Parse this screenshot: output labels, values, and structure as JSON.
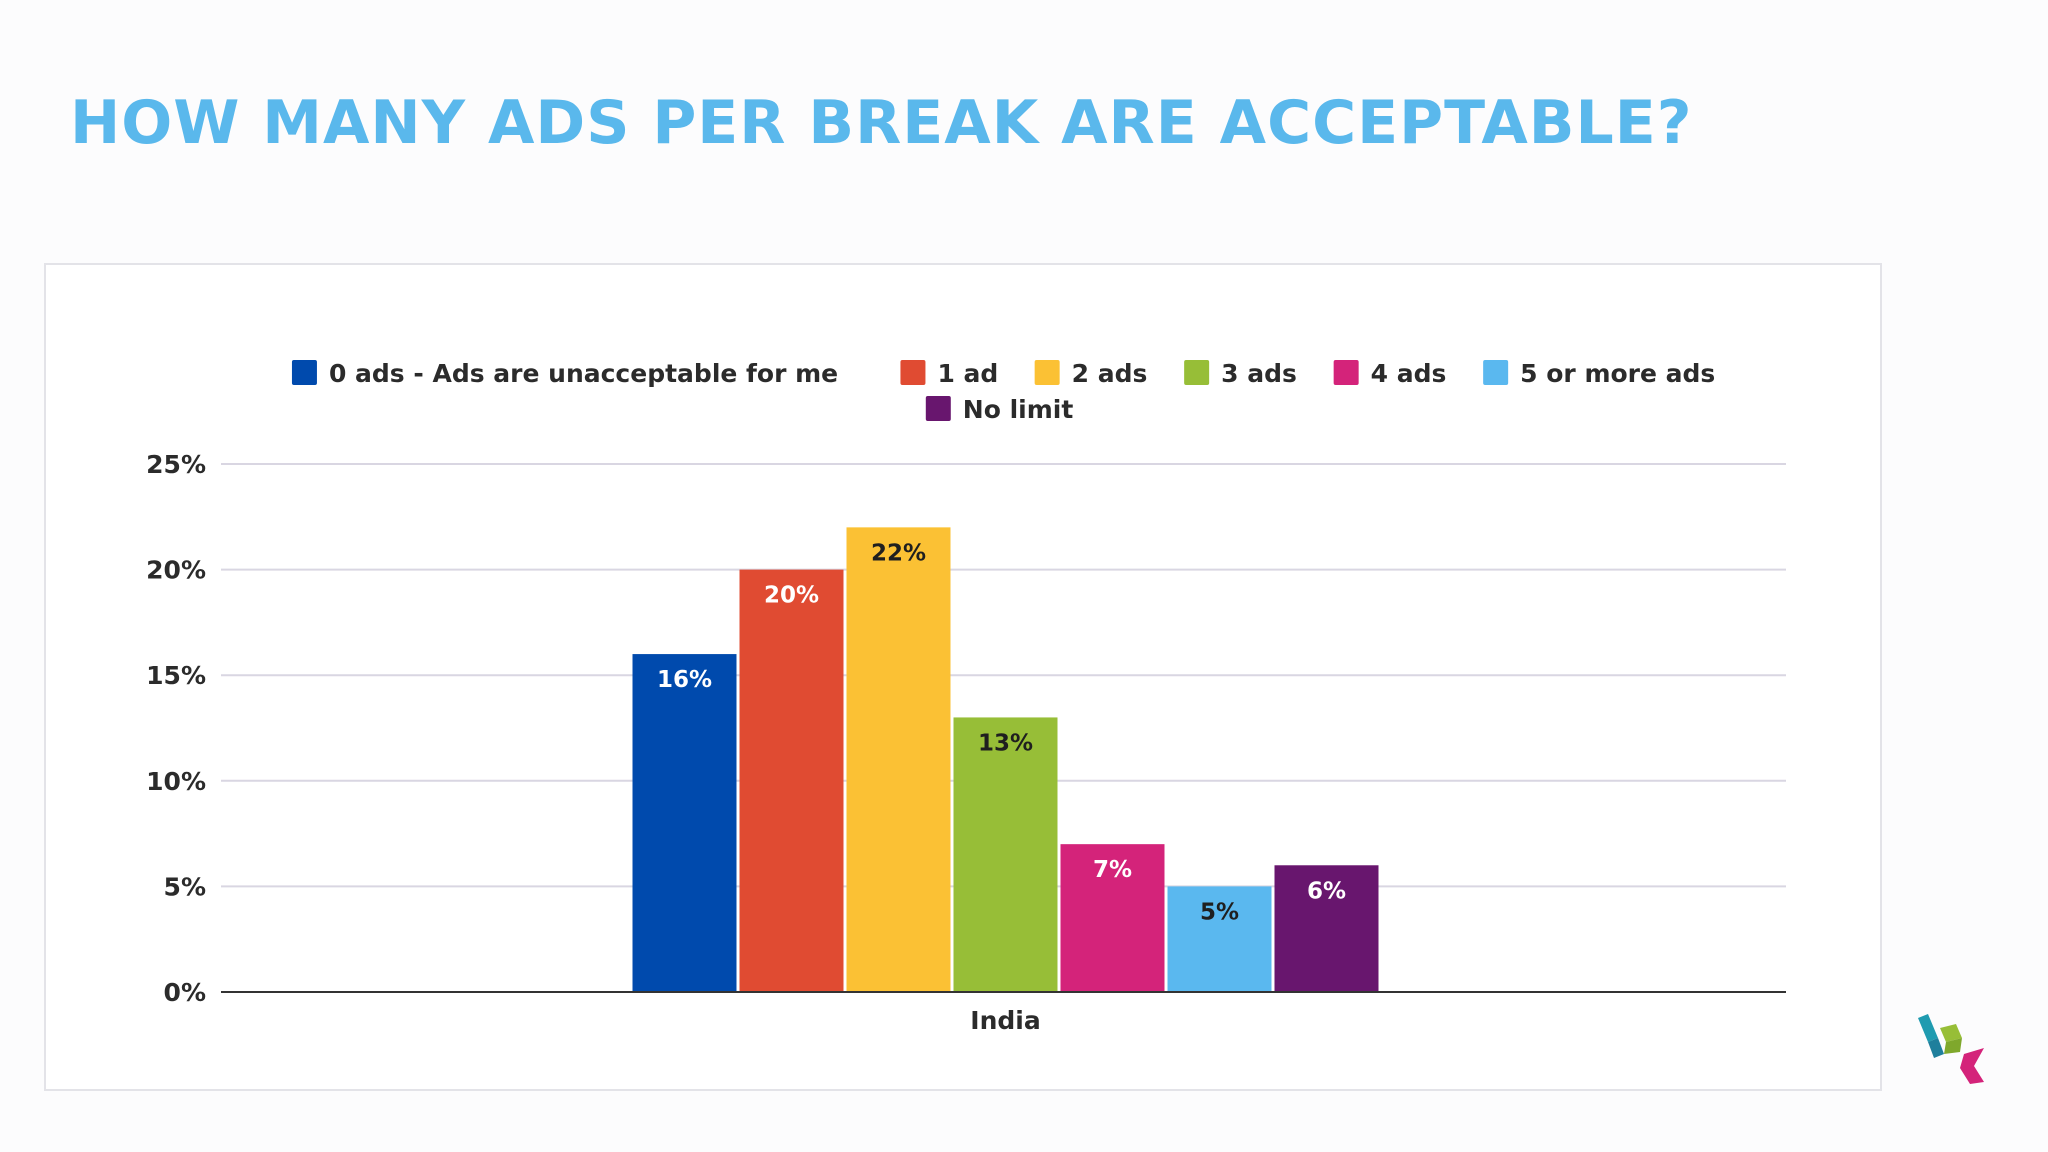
{
  "title": "HOW MANY ADS PER BREAK ARE ACCEPTABLE?",
  "colors": {
    "title": "#5ab8ec",
    "grid": "#d9d6e2",
    "axis": "#333333",
    "text": "#2b2b2b"
  },
  "chart_data": {
    "type": "bar",
    "categories": [
      "India"
    ],
    "series": [
      {
        "name": "0 ads - Ads are unacceptable for me",
        "values": [
          16
        ],
        "label": "16%",
        "color": "#004aad",
        "label_color": "#ffffff"
      },
      {
        "name": "1 ad",
        "values": [
          20
        ],
        "label": "20%",
        "color": "#e04b32",
        "label_color": "#ffffff"
      },
      {
        "name": "2 ads",
        "values": [
          22
        ],
        "label": "22%",
        "color": "#fbc134",
        "label_color": "#1f1f1f"
      },
      {
        "name": "3 ads",
        "values": [
          13
        ],
        "label": "13%",
        "color": "#97be37",
        "label_color": "#1f1f1f"
      },
      {
        "name": "4 ads",
        "values": [
          7
        ],
        "label": "7%",
        "color": "#d4237a",
        "label_color": "#ffffff"
      },
      {
        "name": "5 or more ads",
        "values": [
          5
        ],
        "label": "5%",
        "color": "#5ab8ef",
        "label_color": "#1f1f1f"
      },
      {
        "name": "No limit",
        "values": [
          6
        ],
        "label": "6%",
        "color": "#68166e",
        "label_color": "#ffffff"
      }
    ],
    "yticks": [
      "0%",
      "5%",
      "10%",
      "15%",
      "20%",
      "25%"
    ],
    "ytick_values": [
      0,
      5,
      10,
      15,
      20,
      25
    ],
    "ylim": [
      0,
      25
    ],
    "grid": true,
    "legend_position": "top"
  }
}
